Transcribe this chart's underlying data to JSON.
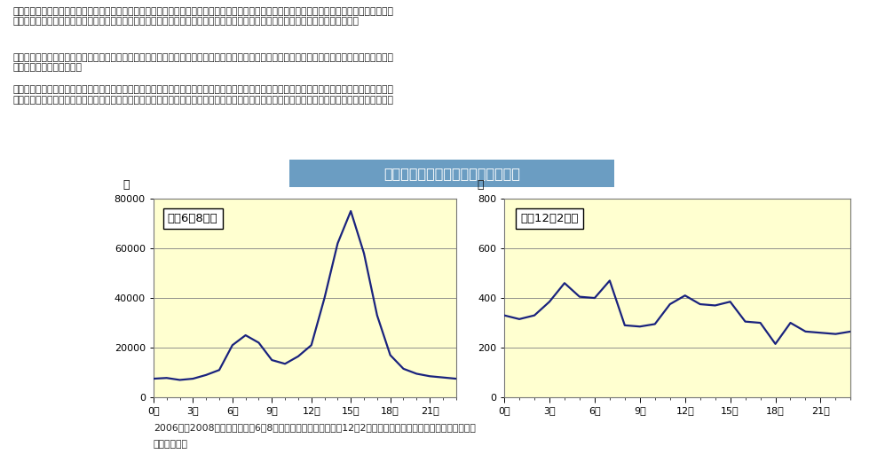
{
  "title": "時刻ごとの対地放電（落雷）検知数",
  "title_bg_color": "#6B9DC2",
  "title_text_color": "#FFFFFF",
  "chart_bg_color": "#FFFFD0",
  "page_bg_color": "#FFFFFF",
  "line_color": "#1A237E",
  "grid_color": "#808080",
  "text_color": "#222222",
  "paragraph1": "また、夏の雷と冬の日本海側の雷について時刻ごとの検知数を比較すると、夏は午後から夕方にかけて明瞭なピークを持つのに対して、冬は昼夜を\n問わず雷が発生し時刻による特徴がはっきりしません。これは、夏の雷と冬の日本海側の雷では、発生する仕組みが異なるためです。",
  "paragraph2": "夏は、日中の強い日射によって暖められた地面付近の空気が上昇し、背の高い積乱雲となって雷を発生させます。夏の雷は、広範囲に発生し長時間\n継続する特徴があります。",
  "paragraph3": "一方、冬に日本海側で多く発生する雷は、大陸から吹き出してきた寒気が日本海で暖められて発生する積乱雲によるものです。日本海沿岸の冬の雷\nは、夏の雷に比べて放電の数が少ないものの、一回あたりの雷の電気量が多く、落雷すると被害が大きくなりやすい特徴があるといわれています。",
  "summer_label": "夏（6〜8月）",
  "winter_label": "冬（12〜2月）",
  "ylabel": "個",
  "summer_ylim": [
    0,
    80000
  ],
  "winter_ylim": [
    0,
    800
  ],
  "summer_yticks": [
    0,
    20000,
    40000,
    60000,
    80000
  ],
  "winter_yticks": [
    0,
    200,
    400,
    600,
    800
  ],
  "summer_data_x": [
    0,
    1,
    2,
    3,
    4,
    5,
    6,
    7,
    8,
    9,
    10,
    11,
    12,
    13,
    14,
    15,
    16,
    17,
    18,
    19,
    20,
    21,
    22,
    23
  ],
  "summer_data_y": [
    7500,
    7800,
    7000,
    7500,
    9000,
    11000,
    21000,
    25000,
    22000,
    15000,
    13500,
    16500,
    21000,
    40000,
    62000,
    75000,
    58000,
    33000,
    17000,
    11500,
    9500,
    8500,
    8000,
    7500
  ],
  "winter_data_x": [
    0,
    1,
    2,
    3,
    4,
    5,
    6,
    7,
    8,
    9,
    10,
    11,
    12,
    13,
    14,
    15,
    16,
    17,
    18,
    19,
    20,
    21,
    22,
    23
  ],
  "winter_data_y": [
    330,
    315,
    330,
    385,
    460,
    405,
    400,
    470,
    290,
    285,
    295,
    375,
    410,
    375,
    370,
    385,
    305,
    300,
    215,
    300,
    265,
    260,
    255,
    265
  ],
  "footnote_line1": "2006年〜2008年の合計。夏（6〜8月）は、全国を集計。冬（12〜2月）は、東北から北陸地方にかけての日本",
  "footnote_line2": "海側を集計。",
  "x_tick_labels": [
    "0時",
    "3時",
    "6時",
    "9時",
    "12時",
    "15時",
    "18時",
    "21時"
  ]
}
